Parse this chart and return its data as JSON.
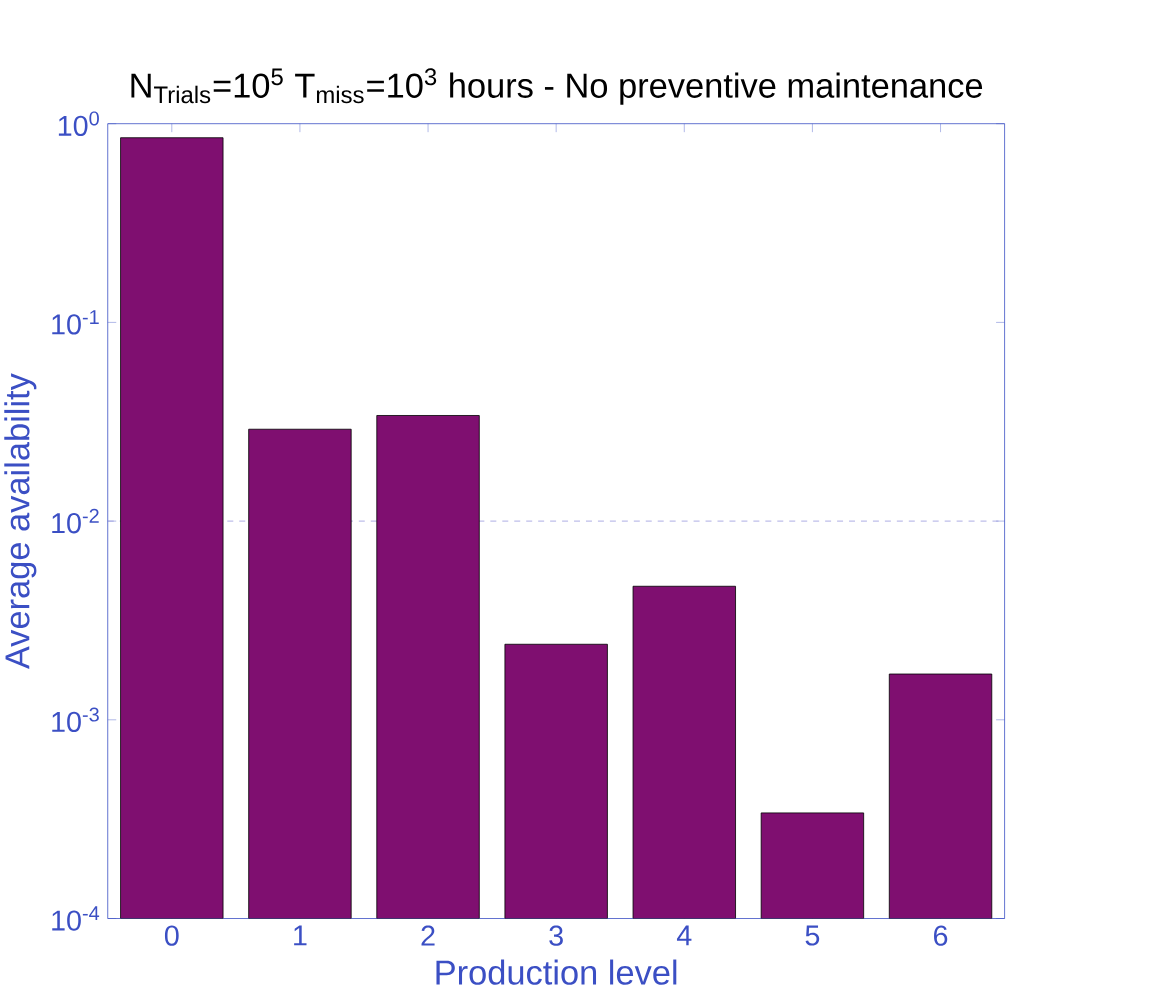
{
  "chart_data": {
    "type": "bar",
    "title": "N$_{Trials}$=10$^{5}$ T$_{miss}$=10$^{3}$ hours - No preventive maintenance",
    "xlabel": "Production level",
    "ylabel": "Average availability",
    "categories": [
      "0",
      "1",
      "2",
      "3",
      "4",
      "5",
      "6"
    ],
    "values": [
      0.85,
      0.029,
      0.034,
      0.0024,
      0.0047,
      0.00034,
      0.0017
    ],
    "color": "#7f0f70",
    "log": "y",
    "ylim": [
      0.0001,
      1
    ],
    "yticks": [
      {
        "value": 0.0001,
        "label": "10$^{-4}$"
      },
      {
        "value": 0.001,
        "label": "10$^{-3}$"
      },
      {
        "value": 0.01,
        "label": "10$^{-2}$"
      },
      {
        "value": 0.1,
        "label": "10$^{-1}$"
      },
      {
        "value": 1,
        "label": "10$^{0}$"
      }
    ],
    "ref_lines": [
      {
        "axis": "y",
        "value": 0.01,
        "color": "#9999dd",
        "line_style": "dashed"
      }
    ]
  }
}
